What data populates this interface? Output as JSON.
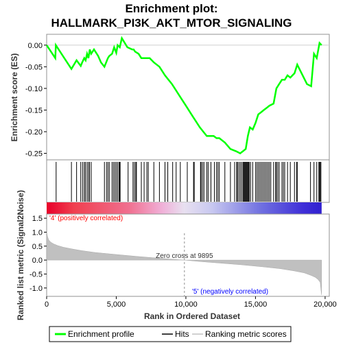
{
  "chart_data": {
    "type": "line",
    "title_line1": "Enrichment plot:",
    "title_line2": "HALLMARK_PI3K_AKT_MTOR_SIGNALING",
    "top_panel": {
      "ylabel": "Enrichment score (ES)",
      "ylim": [
        -0.265,
        0.025
      ],
      "yticks": [
        0.0,
        -0.05,
        -0.1,
        -0.15,
        -0.2,
        -0.25
      ],
      "ytick_labels": [
        "0.00",
        "-0.05",
        "-0.10",
        "-0.15",
        "-0.20",
        "-0.25"
      ],
      "series": [
        {
          "name": "Enrichment profile",
          "color": "#00ff00",
          "x": [
            0,
            620,
            660,
            1780,
            2150,
            2450,
            2550,
            2700,
            2800,
            2900,
            3000,
            3100,
            3200,
            3400,
            3700,
            3900,
            4150,
            4400,
            4500,
            4700,
            4850,
            5000,
            5100,
            5250,
            5400,
            5800,
            6150,
            6250,
            6350,
            6600,
            6800,
            7200,
            7400,
            7700,
            8100,
            8500,
            9000,
            9500,
            10000,
            10500,
            11000,
            11500,
            12000,
            12200,
            12400,
            12800,
            13200,
            13600,
            13900,
            14100,
            14300,
            14450,
            14600,
            14800,
            15000,
            15200,
            15400,
            15600,
            15800,
            16000,
            16300,
            16500,
            16700,
            16900,
            17100,
            17300,
            17500,
            17800,
            18000,
            18700,
            19000,
            19200,
            19400,
            19600,
            19750
          ],
          "y": [
            0.0,
            -0.03,
            0.0,
            -0.055,
            -0.035,
            -0.048,
            -0.04,
            -0.03,
            -0.035,
            -0.02,
            -0.03,
            -0.01,
            -0.02,
            -0.01,
            -0.025,
            -0.04,
            -0.05,
            -0.03,
            -0.025,
            -0.02,
            -0.005,
            -0.018,
            0.0,
            -0.005,
            0.016,
            -0.005,
            -0.01,
            -0.01,
            -0.015,
            -0.02,
            -0.03,
            -0.03,
            -0.03,
            -0.04,
            -0.05,
            -0.07,
            -0.09,
            -0.115,
            -0.14,
            -0.165,
            -0.19,
            -0.21,
            -0.21,
            -0.215,
            -0.215,
            -0.225,
            -0.24,
            -0.245,
            -0.25,
            -0.245,
            -0.24,
            -0.21,
            -0.19,
            -0.195,
            -0.18,
            -0.16,
            -0.155,
            -0.15,
            -0.145,
            -0.14,
            -0.135,
            -0.1,
            -0.09,
            -0.08,
            -0.08,
            -0.07,
            -0.075,
            -0.065,
            -0.045,
            -0.09,
            -0.095,
            -0.02,
            -0.03,
            0.005,
            0.0
          ]
        }
      ]
    },
    "hits": {
      "name": "Hits",
      "color": "#000000",
      "x": [
        680,
        1780,
        2150,
        2450,
        2580,
        2700,
        2780,
        2900,
        3000,
        3080,
        3200,
        4150,
        4300,
        4400,
        4500,
        4700,
        4800,
        4900,
        5000,
        5100,
        5200,
        5250,
        5280,
        5850,
        6200,
        6300,
        6400,
        6450,
        6800,
        7000,
        7200,
        7300,
        7700,
        8100,
        8500,
        8700,
        9050,
        9300,
        9600,
        10100,
        10550,
        10600,
        11050,
        11100,
        11200,
        11300,
        11500,
        11600,
        11800,
        12050,
        12200,
        12300,
        12400,
        12800,
        13200,
        13500,
        13650,
        13700,
        13800,
        13900,
        14000,
        14100,
        14150,
        14200,
        14250,
        14300,
        14350,
        14400,
        14450,
        14500,
        14550,
        14650,
        14800,
        15000,
        15100,
        15200,
        15300,
        15400,
        15500,
        15600,
        15700,
        15800,
        15900,
        16000,
        16100,
        16300,
        16450,
        16500,
        16600,
        16700,
        16900,
        17000,
        17100,
        17300,
        17500,
        17800,
        17950,
        18000,
        18950,
        19200,
        19400,
        19550,
        19600,
        19650,
        19700
      ]
    },
    "metric_panel": {
      "name": "Ranking metric scores",
      "ylabel": "Ranked list metric (Signal2Noise)",
      "ylim": [
        -1.3,
        1.65
      ],
      "yticks": [
        1.5,
        1.0,
        0.5,
        0.0,
        -0.5,
        -1.0
      ],
      "ytick_labels": [
        "1.5",
        "1.0",
        "0.5",
        "0.0",
        "-0.5",
        "-1.0"
      ],
      "fill_color": "#c0c0c0",
      "x": [
        0,
        60,
        150,
        300,
        500,
        800,
        1200,
        1800,
        2500,
        3500,
        5000,
        6500,
        8000,
        9000,
        9895,
        11000,
        12500,
        14000,
        15500,
        16800,
        17800,
        18500,
        19000,
        19300,
        19500,
        19650,
        19700,
        19750
      ],
      "y": [
        1.02,
        0.85,
        0.72,
        0.64,
        0.58,
        0.52,
        0.46,
        0.4,
        0.34,
        0.27,
        0.2,
        0.13,
        0.07,
        0.03,
        0.0,
        -0.05,
        -0.11,
        -0.17,
        -0.24,
        -0.31,
        -0.39,
        -0.46,
        -0.55,
        -0.62,
        -0.7,
        -0.8,
        -1.05,
        -1.25
      ]
    },
    "xaxis": {
      "label": "Rank in Ordered Dataset",
      "xlim": [
        0,
        20300
      ],
      "ticks": [
        0,
        5000,
        10000,
        15000,
        20000
      ],
      "tick_labels": [
        "0",
        "5,000",
        "10,000",
        "15,000",
        "20,000"
      ]
    },
    "color_bar": {
      "x_range": [
        0,
        19750
      ],
      "zero_rank": 9895,
      "positive_color": "#e8002a",
      "negative_color": "#3020d0"
    },
    "annotations": {
      "positive": "'4' (positively correlated)",
      "negative": "'5' (negatively correlated)",
      "zero_cross": "Zero cross at 9895",
      "zero_cross_x": 9895,
      "positive_color": "#ff0000",
      "negative_color": "#0000ff"
    },
    "legend": [
      {
        "label": "Enrichment profile",
        "color": "#00ff00"
      },
      {
        "label": "Hits",
        "color": "#000000"
      },
      {
        "label": "Ranking metric scores",
        "color": "#c0c0c0"
      }
    ]
  }
}
